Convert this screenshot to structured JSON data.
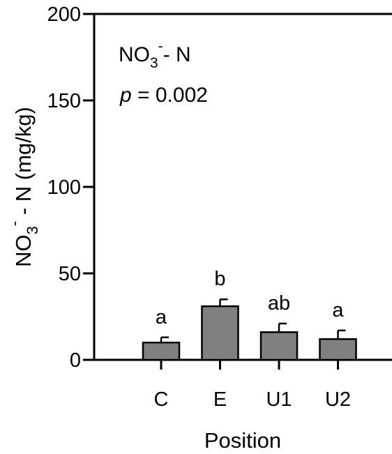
{
  "chart_data": {
    "type": "bar",
    "categories": [
      "C",
      "E",
      "U1",
      "U2"
    ],
    "series": [
      {
        "values": [
          10,
          31,
          16,
          12
        ],
        "errors": [
          3,
          4,
          5,
          5
        ]
      }
    ],
    "significance_letters": [
      "a",
      "b",
      "ab",
      "a"
    ],
    "ylim": [
      0,
      200
    ],
    "yticks": [
      0,
      50,
      100,
      150,
      200
    ],
    "xlabel": "Position",
    "ylabel": {
      "main": "NO",
      "sub": "3",
      "sup": "-",
      "rest": " - N (mg/kg)"
    },
    "annotation_species": {
      "main": "NO",
      "sub": "3",
      "sup": "-",
      "rest": "- N"
    },
    "annotation_p": {
      "var": "p",
      "rest": " = 0.002"
    },
    "grid": false,
    "bar_color": "#808080",
    "edge_color": "#000000"
  }
}
